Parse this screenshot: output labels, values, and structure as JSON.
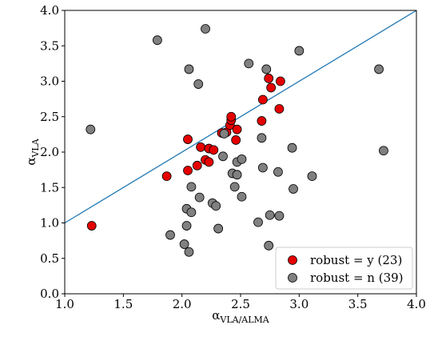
{
  "chart_data": {
    "type": "scatter",
    "title": "",
    "xlabel": {
      "main": "α",
      "sub": "VLA/ALMA"
    },
    "ylabel": {
      "main": "α",
      "sub": "VLA"
    },
    "xlim": [
      1.0,
      4.0
    ],
    "ylim": [
      0.0,
      4.0
    ],
    "xticks": [
      "1.0",
      "1.5",
      "2.0",
      "2.5",
      "3.0",
      "3.5",
      "4.0"
    ],
    "yticks": [
      "0.0",
      "0.5",
      "1.0",
      "1.5",
      "2.0",
      "2.5",
      "3.0",
      "3.5",
      "4.0"
    ],
    "grid": false,
    "legend_position": "lower right",
    "line": {
      "x": [
        1.0,
        4.0
      ],
      "y": [
        1.0,
        4.0
      ],
      "color": "#1f77b4"
    },
    "series": [
      {
        "name": "robust = y (23)",
        "color": "#e50000",
        "x": [
          1.23,
          1.87,
          2.05,
          2.05,
          2.13,
          2.16,
          2.2,
          2.23,
          2.23,
          2.27,
          2.34,
          2.38,
          2.41,
          2.42,
          2.42,
          2.46,
          2.47,
          2.68,
          2.69,
          2.74,
          2.76,
          2.83,
          2.84
        ],
        "y": [
          0.96,
          1.66,
          1.74,
          2.18,
          1.81,
          2.07,
          1.89,
          1.86,
          2.05,
          2.03,
          2.27,
          2.28,
          2.38,
          2.45,
          2.5,
          2.17,
          2.32,
          2.44,
          2.74,
          3.04,
          2.91,
          2.61,
          3.0
        ]
      },
      {
        "name": "robust = n (39)",
        "color": "#808080",
        "x": [
          1.22,
          1.79,
          1.9,
          2.02,
          2.04,
          2.04,
          2.06,
          2.06,
          2.08,
          2.08,
          2.14,
          2.15,
          2.2,
          2.26,
          2.29,
          2.31,
          2.35,
          2.43,
          2.45,
          2.47,
          2.47,
          2.51,
          2.51,
          2.57,
          2.65,
          2.68,
          2.69,
          2.72,
          2.74,
          2.75,
          2.82,
          2.83,
          2.94,
          2.95,
          3.0,
          3.11,
          3.68,
          3.72,
          2.36
        ],
        "y": [
          2.32,
          3.58,
          0.83,
          0.7,
          0.96,
          1.2,
          3.17,
          0.59,
          1.51,
          1.15,
          2.96,
          1.36,
          3.74,
          1.28,
          1.24,
          0.92,
          1.94,
          1.7,
          1.51,
          1.68,
          1.86,
          1.9,
          1.37,
          3.25,
          1.01,
          2.2,
          1.78,
          3.17,
          0.68,
          1.11,
          1.72,
          1.1,
          2.06,
          1.48,
          3.43,
          1.66,
          3.17,
          2.02,
          2.26
        ]
      }
    ]
  }
}
